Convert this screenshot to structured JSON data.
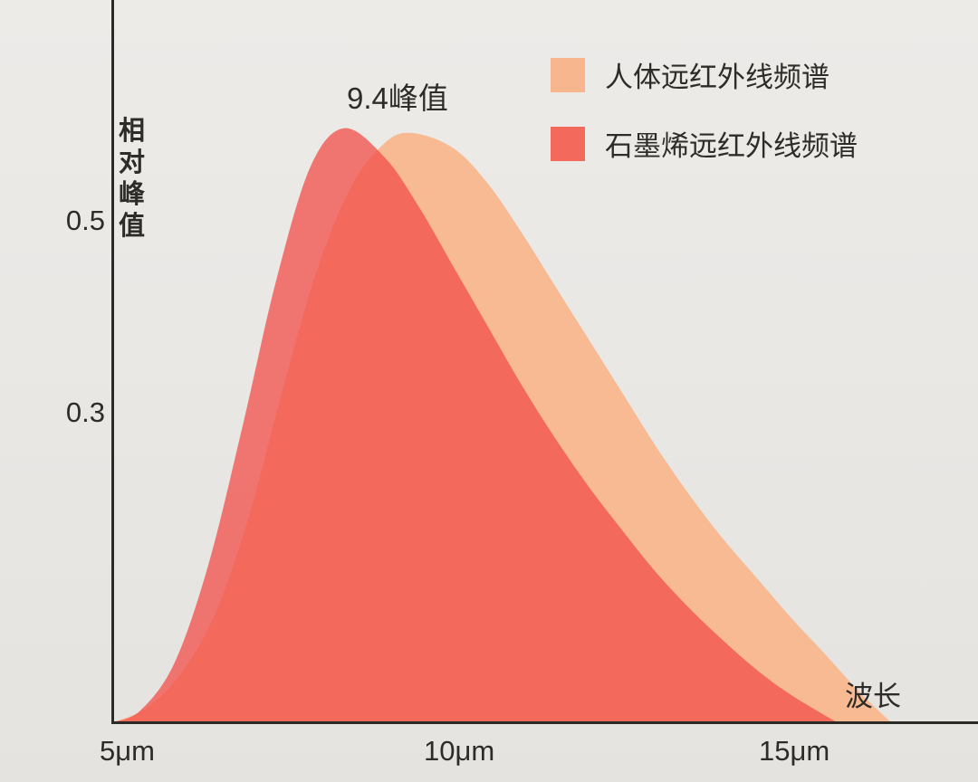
{
  "page": {
    "background_top": "#EDEBE8",
    "background_bottom": "#E5E3DF",
    "axis_color": "#2B2A27",
    "text_color": "#2E2C29"
  },
  "chart_data": {
    "type": "area",
    "title": "",
    "xlabel": "波长",
    "ylabel": "相对峰值",
    "annotation": {
      "text": "9.4峰值",
      "x_um": 9.4
    },
    "x_range_um": [
      5,
      16.5
    ],
    "y_range": [
      0,
      0.65
    ],
    "grid": false,
    "legend_position": "top-right",
    "x_ticks": [
      {
        "label": "5μm",
        "value": 5
      },
      {
        "label": "10μm",
        "value": 10
      },
      {
        "label": "15μm",
        "value": 15
      }
    ],
    "y_ticks": [
      {
        "label": "0.5",
        "value": 0.5
      },
      {
        "label": "0.3",
        "value": 0.3
      }
    ],
    "series": [
      {
        "name": "人体远红外线频谱",
        "legend_color": "#F7B68D",
        "fill": "#F8BA92",
        "peak_x_um": 9.4,
        "peak_value": 0.6,
        "points": [
          [
            5,
            0
          ],
          [
            5.5,
            0.015
          ],
          [
            6,
            0.05
          ],
          [
            6.5,
            0.11
          ],
          [
            7,
            0.21
          ],
          [
            7.5,
            0.34
          ],
          [
            8,
            0.46
          ],
          [
            8.5,
            0.545
          ],
          [
            9,
            0.59
          ],
          [
            9.4,
            0.6
          ],
          [
            10,
            0.585
          ],
          [
            10.5,
            0.55
          ],
          [
            11,
            0.5
          ],
          [
            11.5,
            0.445
          ],
          [
            12,
            0.39
          ],
          [
            12.5,
            0.335
          ],
          [
            13,
            0.28
          ],
          [
            13.5,
            0.23
          ],
          [
            14,
            0.185
          ],
          [
            14.5,
            0.145
          ],
          [
            15,
            0.105
          ],
          [
            15.5,
            0.068
          ],
          [
            16,
            0.03
          ],
          [
            16.45,
            0
          ]
        ]
      },
      {
        "name": "石墨烯远红外线频谱",
        "legend_color": "#F3695C",
        "fill": "rgba(241,78,72,0.75)",
        "peak_x_um": 8.4,
        "peak_value": 0.605,
        "points": [
          [
            5,
            0
          ],
          [
            5.4,
            0.012
          ],
          [
            5.9,
            0.06
          ],
          [
            6.4,
            0.16
          ],
          [
            6.9,
            0.3
          ],
          [
            7.4,
            0.45
          ],
          [
            7.9,
            0.565
          ],
          [
            8.4,
            0.605
          ],
          [
            9,
            0.575
          ],
          [
            9.5,
            0.525
          ],
          [
            10,
            0.465
          ],
          [
            10.5,
            0.405
          ],
          [
            11,
            0.345
          ],
          [
            11.5,
            0.29
          ],
          [
            12,
            0.24
          ],
          [
            12.5,
            0.195
          ],
          [
            13,
            0.152
          ],
          [
            13.5,
            0.115
          ],
          [
            14,
            0.082
          ],
          [
            14.5,
            0.052
          ],
          [
            15,
            0.027
          ],
          [
            15.65,
            0
          ]
        ]
      }
    ]
  }
}
